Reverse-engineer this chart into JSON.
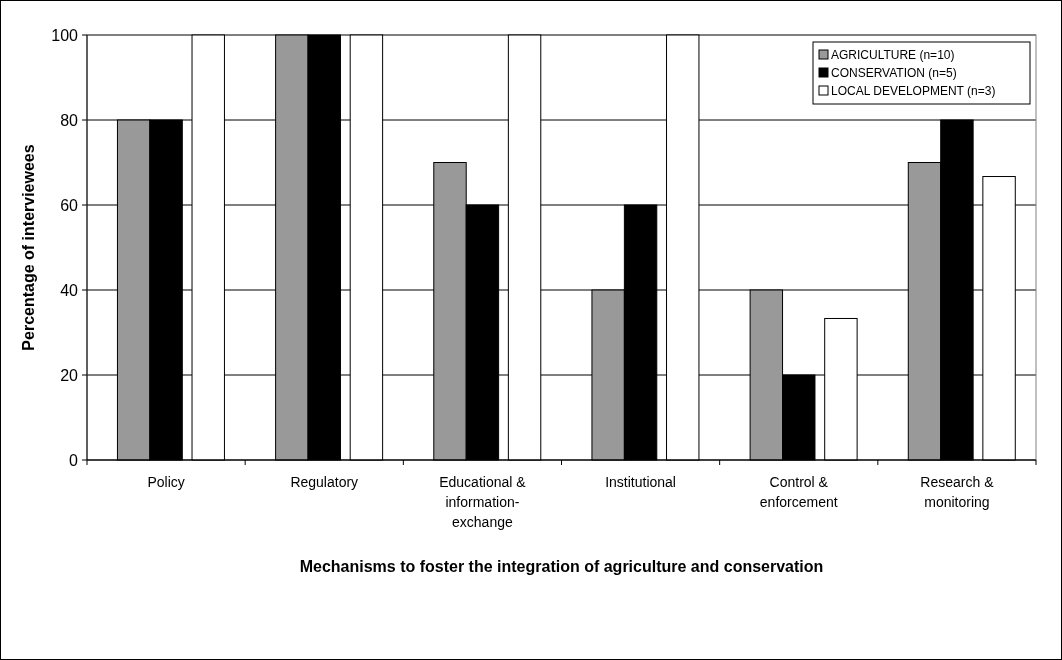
{
  "chart_data": {
    "type": "bar",
    "xlabel": "Mechanisms to foster the integration of agriculture and conservation",
    "ylabel": "Percentage of interviewees",
    "categories": [
      "Policy",
      "Regulatory",
      "Educational & information-exchange",
      "Institutional",
      "Control & enforcement",
      "Research & monitoring"
    ],
    "series": [
      {
        "name": "AGRICULTURE (n=10)",
        "color": "#999999",
        "values": [
          80,
          100,
          70,
          40,
          40,
          70
        ]
      },
      {
        "name": "CONSERVATION (n=5)",
        "color": "#000000",
        "values": [
          80,
          100,
          60,
          60,
          20,
          80
        ]
      },
      {
        "name": "LOCAL DEVELOPMENT (n=3)",
        "color": "#ffffff",
        "values": [
          100,
          100,
          100,
          100,
          33.3,
          66.7
        ]
      }
    ],
    "ylim": [
      0,
      100
    ],
    "yticks": [
      0,
      20,
      40,
      60,
      80,
      100
    ],
    "grid": "y",
    "legend": "top right"
  }
}
